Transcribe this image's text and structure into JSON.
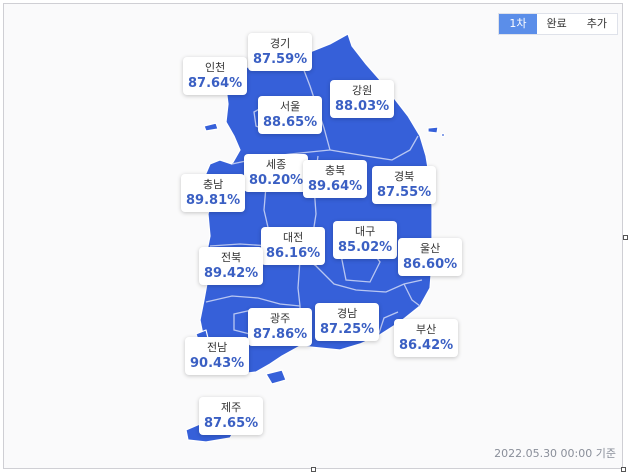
{
  "tabs": [
    "1차",
    "완료",
    "추가"
  ],
  "active_tab_index": 0,
  "regions": [
    {
      "name": "경기",
      "rate": "87.59%"
    },
    {
      "name": "인천",
      "rate": "87.64%"
    },
    {
      "name": "강원",
      "rate": "88.03%"
    },
    {
      "name": "서울",
      "rate": "88.65%"
    },
    {
      "name": "세종",
      "rate": "80.20%"
    },
    {
      "name": "충북",
      "rate": "89.64%"
    },
    {
      "name": "충남",
      "rate": "89.81%"
    },
    {
      "name": "경북",
      "rate": "87.55%"
    },
    {
      "name": "대전",
      "rate": "86.16%"
    },
    {
      "name": "대구",
      "rate": "85.02%"
    },
    {
      "name": "전북",
      "rate": "89.42%"
    },
    {
      "name": "울산",
      "rate": "86.60%"
    },
    {
      "name": "광주",
      "rate": "87.86%"
    },
    {
      "name": "경남",
      "rate": "87.25%"
    },
    {
      "name": "부산",
      "rate": "86.42%"
    },
    {
      "name": "전남",
      "rate": "90.43%"
    },
    {
      "name": "제주",
      "rate": "87.65%"
    }
  ],
  "colors": {
    "map_fill": "#3660d9",
    "active_tab": "#5b8ee9",
    "rate_text": "#3a5fc3"
  },
  "footer": {
    "as_of": "2022.05.30 00:00 기준"
  }
}
